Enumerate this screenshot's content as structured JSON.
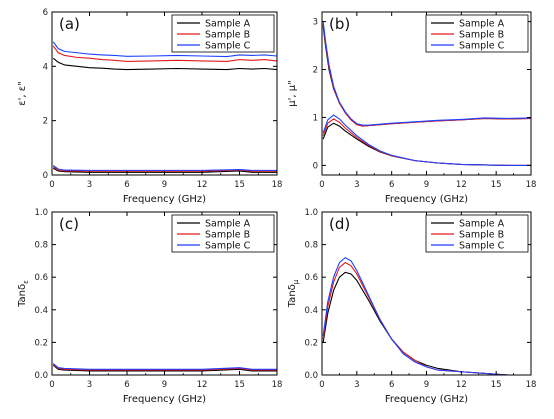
{
  "chart_data": [
    {
      "type": "line",
      "panel_label": "(a)",
      "xlabel": "Frequency (GHz)",
      "ylabel": "ε', ε\"",
      "xlim": [
        0,
        18
      ],
      "ylim": [
        0,
        6
      ],
      "xticks": [
        0,
        3,
        6,
        9,
        12,
        15,
        18
      ],
      "yticks": [
        0,
        2,
        4,
        6
      ],
      "legend": "top-right",
      "series": [
        {
          "name": "Sample A",
          "color": "#000000",
          "x": [
            0.1,
            0.5,
            1,
            2,
            3,
            4,
            5,
            6,
            8,
            10,
            12,
            14,
            15,
            16,
            17,
            18
          ],
          "y": [
            4.3,
            4.15,
            4.05,
            4.0,
            3.95,
            3.93,
            3.9,
            3.88,
            3.9,
            3.92,
            3.9,
            3.88,
            3.92,
            3.9,
            3.92,
            3.88
          ]
        },
        {
          "name": "Sample B",
          "color": "#e31a1c",
          "x": [
            0.1,
            0.5,
            1,
            2,
            3,
            4,
            5,
            6,
            8,
            10,
            12,
            14,
            15,
            16,
            17,
            18
          ],
          "y": [
            4.75,
            4.5,
            4.4,
            4.33,
            4.3,
            4.25,
            4.22,
            4.18,
            4.2,
            4.22,
            4.2,
            4.18,
            4.25,
            4.22,
            4.25,
            4.2
          ]
        },
        {
          "name": "Sample C",
          "color": "#1f3fff",
          "x": [
            0.1,
            0.5,
            1,
            2,
            3,
            4,
            5,
            6,
            8,
            10,
            12,
            14,
            15,
            16,
            17,
            18
          ],
          "y": [
            4.9,
            4.65,
            4.55,
            4.5,
            4.45,
            4.42,
            4.4,
            4.37,
            4.38,
            4.4,
            4.38,
            4.36,
            4.42,
            4.4,
            4.42,
            4.38
          ]
        },
        {
          "name": "",
          "color": "#000000",
          "x": [
            0.1,
            0.5,
            1,
            3,
            6,
            9,
            12,
            15,
            16,
            18
          ],
          "y": [
            0.25,
            0.15,
            0.12,
            0.1,
            0.1,
            0.1,
            0.1,
            0.15,
            0.1,
            0.1
          ]
        },
        {
          "name": "",
          "color": "#e31a1c",
          "x": [
            0.1,
            0.5,
            1,
            3,
            6,
            9,
            12,
            15,
            16,
            18
          ],
          "y": [
            0.3,
            0.18,
            0.15,
            0.14,
            0.14,
            0.14,
            0.14,
            0.18,
            0.14,
            0.14
          ]
        },
        {
          "name": "",
          "color": "#1f3fff",
          "x": [
            0.1,
            0.5,
            1,
            3,
            6,
            9,
            12,
            15,
            16,
            18
          ],
          "y": [
            0.35,
            0.22,
            0.18,
            0.17,
            0.17,
            0.17,
            0.17,
            0.2,
            0.17,
            0.17
          ]
        }
      ]
    },
    {
      "type": "line",
      "panel_label": "(b)",
      "xlabel": "Frequency (GHz)",
      "ylabel": "μ', μ\"",
      "xlim": [
        0,
        18
      ],
      "ylim": [
        -0.2,
        3.2
      ],
      "xticks": [
        0,
        3,
        6,
        9,
        12,
        15,
        18
      ],
      "yticks": [
        0,
        1,
        2,
        3
      ],
      "legend": "top-right",
      "series": [
        {
          "name": "Sample A",
          "color": "#000000",
          "x": [
            0.1,
            0.3,
            0.6,
            1,
            1.5,
            2,
            2.5,
            3,
            3.5,
            4,
            5,
            6,
            8,
            10,
            12,
            14,
            16,
            18
          ],
          "y": [
            2.9,
            2.5,
            2.0,
            1.6,
            1.3,
            1.1,
            0.95,
            0.85,
            0.82,
            0.83,
            0.85,
            0.87,
            0.9,
            0.93,
            0.95,
            0.98,
            0.97,
            0.98
          ]
        },
        {
          "name": "Sample B",
          "color": "#e31a1c",
          "x": [
            0.1,
            0.3,
            0.6,
            1,
            1.5,
            2,
            2.5,
            3,
            3.5,
            4,
            5,
            6,
            8,
            10,
            12,
            14,
            16,
            18
          ],
          "y": [
            2.95,
            2.55,
            2.05,
            1.62,
            1.3,
            1.1,
            0.95,
            0.85,
            0.82,
            0.83,
            0.85,
            0.87,
            0.9,
            0.93,
            0.95,
            0.98,
            0.97,
            0.98
          ]
        },
        {
          "name": "Sample C",
          "color": "#1f3fff",
          "x": [
            0.1,
            0.3,
            0.6,
            1,
            1.5,
            2,
            2.5,
            3,
            3.5,
            4,
            5,
            6,
            8,
            10,
            12,
            14,
            16,
            18
          ],
          "y": [
            3.0,
            2.6,
            2.1,
            1.65,
            1.32,
            1.12,
            0.97,
            0.87,
            0.84,
            0.84,
            0.86,
            0.88,
            0.91,
            0.94,
            0.96,
            0.99,
            0.98,
            0.99
          ]
        },
        {
          "name": "",
          "color": "#000000",
          "x": [
            0.1,
            0.5,
            1,
            1.5,
            2,
            3,
            4,
            5,
            6,
            8,
            10,
            12,
            14,
            16,
            18
          ],
          "y": [
            0.55,
            0.8,
            0.88,
            0.82,
            0.72,
            0.55,
            0.4,
            0.28,
            0.2,
            0.1,
            0.05,
            0.02,
            0.01,
            0.0,
            0.0
          ]
        },
        {
          "name": "",
          "color": "#e31a1c",
          "x": [
            0.1,
            0.5,
            1,
            1.5,
            2,
            3,
            4,
            5,
            6,
            8,
            10,
            12,
            14,
            16,
            18
          ],
          "y": [
            0.62,
            0.88,
            0.97,
            0.9,
            0.78,
            0.58,
            0.42,
            0.29,
            0.2,
            0.1,
            0.05,
            0.02,
            0.01,
            0.0,
            0.0
          ]
        },
        {
          "name": "",
          "color": "#1f3fff",
          "x": [
            0.1,
            0.5,
            1,
            1.5,
            2,
            3,
            4,
            5,
            6,
            8,
            10,
            12,
            14,
            16,
            18
          ],
          "y": [
            0.68,
            0.95,
            1.05,
            0.97,
            0.84,
            0.62,
            0.44,
            0.3,
            0.21,
            0.1,
            0.05,
            0.02,
            0.01,
            0.0,
            0.0
          ]
        }
      ]
    },
    {
      "type": "line",
      "panel_label": "(c)",
      "xlabel": "Frequency (GHz)",
      "ylabel": "Tanδ",
      "ylabel_sub": "ε",
      "xlim": [
        0,
        18
      ],
      "ylim": [
        0,
        1.0
      ],
      "xticks": [
        0,
        3,
        6,
        9,
        12,
        15,
        18
      ],
      "yticks": [
        0.0,
        0.2,
        0.4,
        0.6,
        0.8,
        1.0
      ],
      "legend": "top-right",
      "series": [
        {
          "name": "Sample A",
          "color": "#000000",
          "x": [
            0.1,
            0.5,
            1,
            3,
            6,
            9,
            12,
            15,
            16,
            18
          ],
          "y": [
            0.06,
            0.035,
            0.03,
            0.025,
            0.025,
            0.025,
            0.025,
            0.035,
            0.025,
            0.025
          ]
        },
        {
          "name": "Sample B",
          "color": "#e31a1c",
          "x": [
            0.1,
            0.5,
            1,
            3,
            6,
            9,
            12,
            15,
            16,
            18
          ],
          "y": [
            0.065,
            0.04,
            0.035,
            0.03,
            0.03,
            0.03,
            0.03,
            0.04,
            0.03,
            0.03
          ]
        },
        {
          "name": "Sample C",
          "color": "#1f3fff",
          "x": [
            0.1,
            0.5,
            1,
            3,
            6,
            9,
            12,
            15,
            16,
            18
          ],
          "y": [
            0.07,
            0.045,
            0.04,
            0.035,
            0.035,
            0.035,
            0.035,
            0.045,
            0.035,
            0.035
          ]
        }
      ]
    },
    {
      "type": "line",
      "panel_label": "(d)",
      "xlabel": "Frequency (GHz)",
      "ylabel": "Tanδ",
      "ylabel_sub": "μ",
      "xlim": [
        0,
        18
      ],
      "ylim": [
        0,
        1.0
      ],
      "xticks": [
        0,
        3,
        6,
        9,
        12,
        15,
        18
      ],
      "yticks": [
        0.0,
        0.2,
        0.4,
        0.6,
        0.8,
        1.0
      ],
      "legend": "top-right",
      "series": [
        {
          "name": "Sample A",
          "color": "#000000",
          "x": [
            0.1,
            0.5,
            1,
            1.5,
            2,
            2.5,
            3,
            4,
            5,
            6,
            7,
            8,
            9,
            10,
            12,
            14,
            16,
            18
          ],
          "y": [
            0.2,
            0.38,
            0.52,
            0.6,
            0.63,
            0.62,
            0.58,
            0.46,
            0.33,
            0.22,
            0.14,
            0.09,
            0.06,
            0.04,
            0.02,
            0.01,
            0.0,
            0.0
          ]
        },
        {
          "name": "Sample B",
          "color": "#e31a1c",
          "x": [
            0.1,
            0.5,
            1,
            1.5,
            2,
            2.5,
            3,
            4,
            5,
            6,
            7,
            8,
            9,
            10,
            12,
            14,
            16,
            18
          ],
          "y": [
            0.22,
            0.42,
            0.57,
            0.66,
            0.69,
            0.67,
            0.62,
            0.48,
            0.34,
            0.22,
            0.14,
            0.09,
            0.05,
            0.03,
            0.02,
            0.01,
            0.0,
            0.0
          ]
        },
        {
          "name": "Sample C",
          "color": "#1f3fff",
          "x": [
            0.1,
            0.5,
            1,
            1.5,
            2,
            2.5,
            3,
            4,
            5,
            6,
            7,
            8,
            9,
            10,
            12,
            14,
            16,
            18
          ],
          "y": [
            0.24,
            0.45,
            0.6,
            0.69,
            0.72,
            0.7,
            0.64,
            0.49,
            0.34,
            0.22,
            0.13,
            0.08,
            0.05,
            0.03,
            0.02,
            0.01,
            0.0,
            0.0
          ]
        }
      ]
    }
  ]
}
